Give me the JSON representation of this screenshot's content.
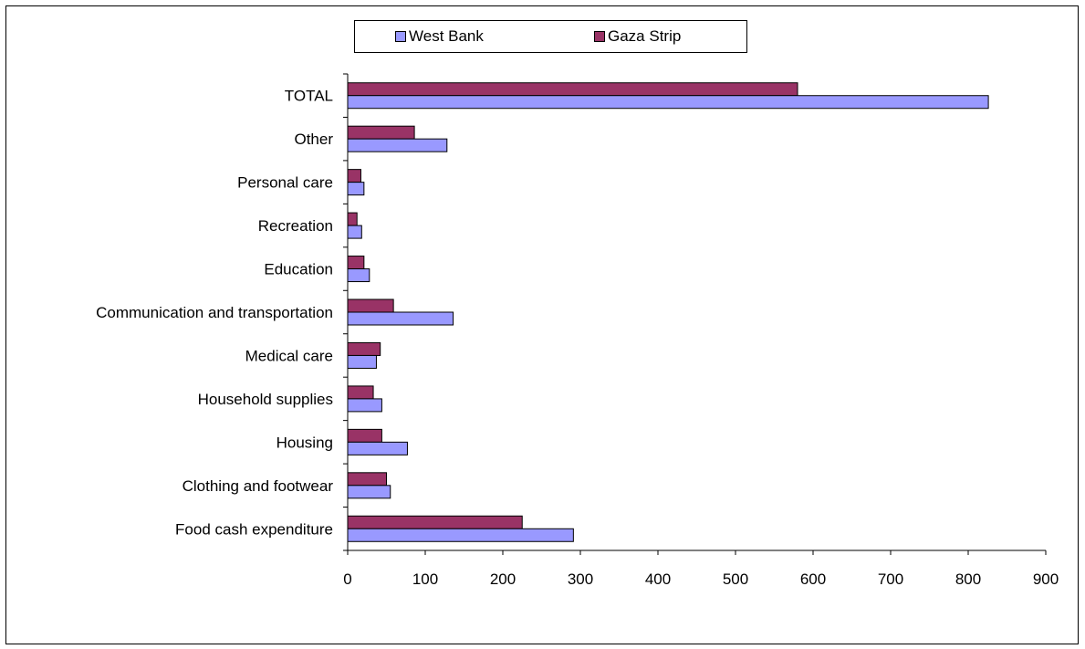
{
  "chart_data": {
    "type": "bar",
    "orientation": "horizontal",
    "categories": [
      "TOTAL",
      "Other",
      "Personal care",
      "Recreation",
      "Education",
      "Communication and transportation",
      "Medical care",
      "Household supplies",
      "Housing",
      "Clothing and footwear",
      "Food cash expenditure"
    ],
    "series": [
      {
        "name": "Gaza Strip",
        "color": "#993366",
        "values": [
          580,
          86,
          17,
          12,
          21,
          59,
          42,
          33,
          44,
          50,
          225
        ]
      },
      {
        "name": "West Bank",
        "color": "#9999ff",
        "values": [
          826,
          128,
          21,
          18,
          28,
          136,
          37,
          44,
          77,
          55,
          291
        ]
      }
    ],
    "xlim": [
      0,
      900
    ],
    "xticks": [
      0,
      100,
      200,
      300,
      400,
      500,
      600,
      700,
      800,
      900
    ],
    "legend": {
      "position": "top",
      "entries": [
        {
          "label": "West Bank",
          "color": "#9999ff"
        },
        {
          "label": "Gaza Strip",
          "color": "#993366"
        }
      ]
    },
    "grid": false
  }
}
